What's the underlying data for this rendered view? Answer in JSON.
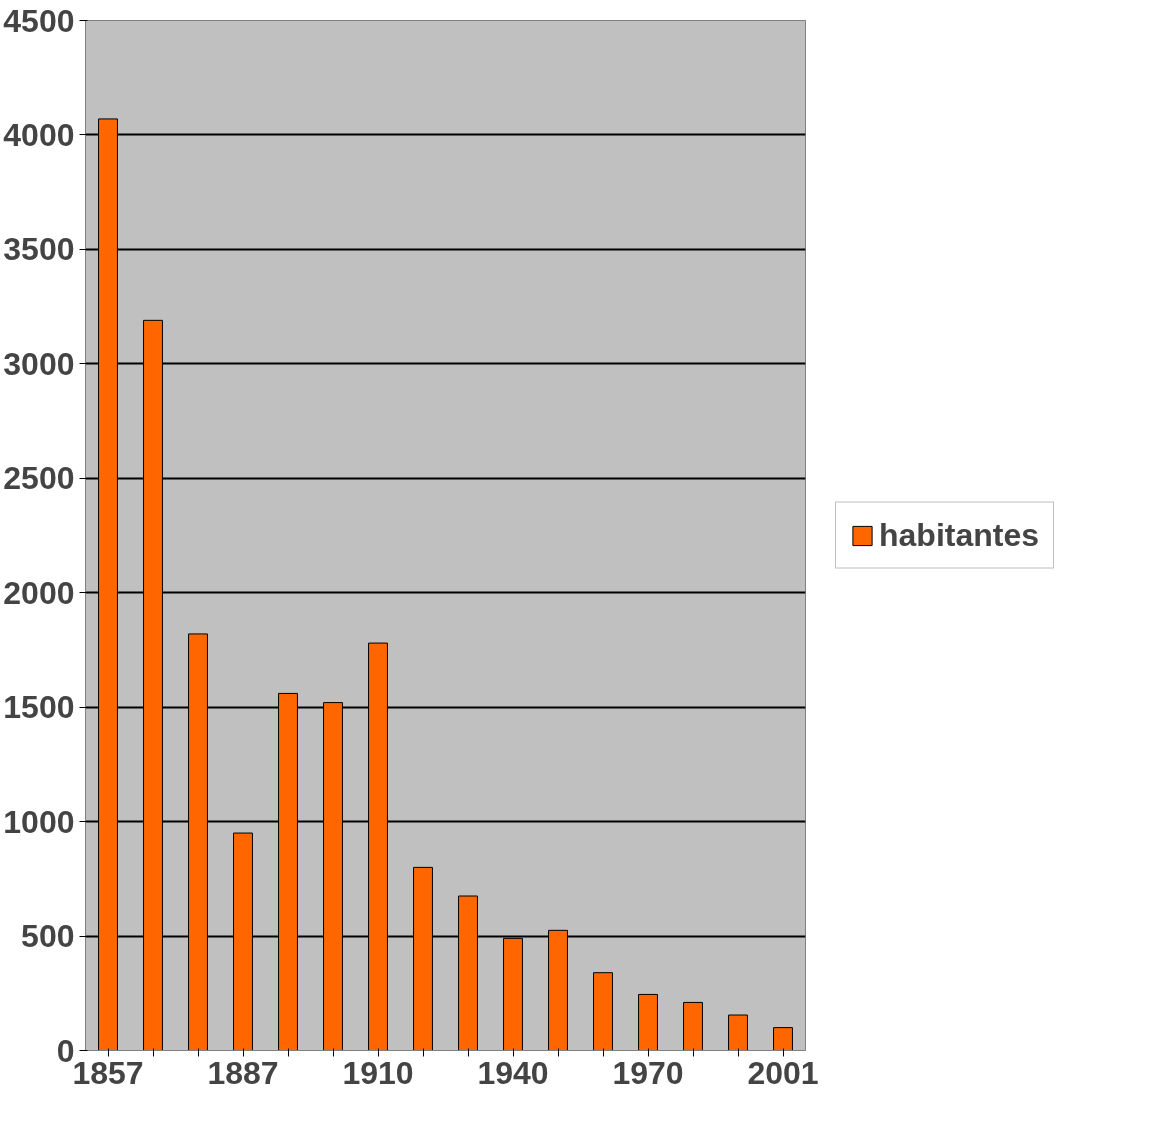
{
  "chart_data": {
    "type": "bar",
    "categories": [
      "1857",
      null,
      null,
      "1887",
      null,
      null,
      "1910",
      null,
      null,
      "1940",
      null,
      null,
      "1970",
      null,
      null,
      "2001"
    ],
    "series": [
      {
        "name": "habitantes",
        "color": "#ff6600",
        "values": [
          4070,
          3190,
          1820,
          950,
          1560,
          1520,
          1780,
          800,
          675,
          490,
          525,
          340,
          245,
          210,
          155,
          100
        ]
      }
    ],
    "ylim": [
      0,
      4500
    ],
    "yticks": [
      0,
      500,
      1000,
      1500,
      2000,
      2500,
      3000,
      3500,
      4000,
      4500
    ],
    "grid": "y",
    "legend": "right"
  }
}
